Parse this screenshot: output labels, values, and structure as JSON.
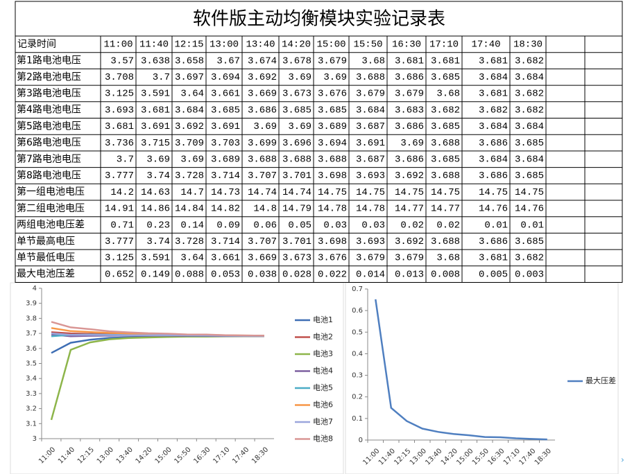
{
  "table": {
    "title": "软件版主动均衡模块实验记录表",
    "header": [
      "记录时间",
      "11:00",
      "11:40",
      "12:15",
      "13:00",
      "13:40",
      "14:20",
      "15:00",
      "15:50",
      "16:30",
      "17:10",
      "17:40",
      "18:30"
    ],
    "rows": [
      [
        "第1路电池电压",
        3.57,
        3.638,
        3.658,
        3.67,
        3.674,
        3.678,
        3.679,
        3.68,
        3.681,
        3.681,
        3.681,
        3.682
      ],
      [
        "第2路电池电压",
        3.708,
        3.7,
        3.697,
        3.694,
        3.692,
        3.69,
        3.69,
        3.688,
        3.686,
        3.685,
        3.684,
        3.684
      ],
      [
        "第3路电池电压",
        3.125,
        3.591,
        3.64,
        3.661,
        3.669,
        3.673,
        3.676,
        3.679,
        3.679,
        3.68,
        3.681,
        3.682
      ],
      [
        "第4路电池电压",
        3.693,
        3.681,
        3.684,
        3.685,
        3.686,
        3.685,
        3.685,
        3.684,
        3.683,
        3.682,
        3.682,
        3.682
      ],
      [
        "第5路电池电压",
        3.681,
        3.691,
        3.692,
        3.691,
        3.69,
        3.69,
        3.689,
        3.687,
        3.686,
        3.685,
        3.684,
        3.684
      ],
      [
        "第6路电池电压",
        3.736,
        3.715,
        3.709,
        3.703,
        3.699,
        3.696,
        3.694,
        3.691,
        3.69,
        3.688,
        3.686,
        3.685
      ],
      [
        "第7路电池电压",
        3.7,
        3.69,
        3.69,
        3.689,
        3.688,
        3.688,
        3.688,
        3.687,
        3.686,
        3.685,
        3.684,
        3.684
      ],
      [
        "第8路电池电压",
        3.777,
        3.74,
        3.728,
        3.714,
        3.707,
        3.701,
        3.698,
        3.693,
        3.692,
        3.688,
        3.686,
        3.685
      ],
      [
        "第一组电池电压",
        14.2,
        14.63,
        14.7,
        14.73,
        14.74,
        14.74,
        14.75,
        14.75,
        14.75,
        14.75,
        14.75,
        14.75
      ],
      [
        "第二组电池电压",
        14.91,
        14.86,
        14.84,
        14.82,
        14.8,
        14.79,
        14.78,
        14.78,
        14.77,
        14.77,
        14.76,
        14.76
      ],
      [
        "两组电池电压差",
        0.71,
        0.23,
        0.14,
        0.09,
        0.06,
        0.05,
        0.03,
        0.03,
        0.02,
        0.02,
        0.01,
        0.01
      ],
      [
        "单节最高电压",
        3.777,
        3.74,
        3.728,
        3.714,
        3.707,
        3.701,
        3.698,
        3.693,
        3.692,
        3.688,
        3.686,
        3.685
      ],
      [
        "单节最低电压",
        3.125,
        3.591,
        3.64,
        3.661,
        3.669,
        3.673,
        3.676,
        3.679,
        3.679,
        3.68,
        3.681,
        3.682
      ],
      [
        "最大电池压差",
        0.652,
        0.149,
        0.088,
        0.053,
        0.038,
        0.028,
        0.022,
        0.014,
        0.013,
        0.008,
        0.005,
        0.003
      ]
    ]
  },
  "chart_data": [
    {
      "type": "line",
      "categories": [
        "11:00",
        "11:40",
        "12:15",
        "13:00",
        "13:40",
        "14:20",
        "15:00",
        "15:50",
        "16:30",
        "17:10",
        "17:40",
        "18:30"
      ],
      "ylim": [
        3,
        4
      ],
      "yticks": [
        3,
        3.1,
        3.2,
        3.3,
        3.4,
        3.5,
        3.6,
        3.7,
        3.8,
        3.9,
        4
      ],
      "series": [
        {
          "name": "电池1",
          "color": "#3e6eb4",
          "values": [
            3.57,
            3.638,
            3.658,
            3.67,
            3.674,
            3.678,
            3.679,
            3.68,
            3.681,
            3.681,
            3.681,
            3.682
          ]
        },
        {
          "name": "电池2",
          "color": "#c0504d",
          "values": [
            3.708,
            3.7,
            3.697,
            3.694,
            3.692,
            3.69,
            3.69,
            3.688,
            3.686,
            3.685,
            3.684,
            3.684
          ]
        },
        {
          "name": "电池3",
          "color": "#8db54a",
          "values": [
            3.125,
            3.591,
            3.64,
            3.661,
            3.669,
            3.673,
            3.676,
            3.679,
            3.679,
            3.68,
            3.681,
            3.682
          ]
        },
        {
          "name": "电池4",
          "color": "#7d60a0",
          "values": [
            3.693,
            3.681,
            3.684,
            3.685,
            3.686,
            3.685,
            3.685,
            3.684,
            3.683,
            3.682,
            3.682,
            3.682
          ]
        },
        {
          "name": "电池5",
          "color": "#4bacc6",
          "values": [
            3.681,
            3.691,
            3.692,
            3.691,
            3.69,
            3.69,
            3.689,
            3.687,
            3.686,
            3.685,
            3.684,
            3.684
          ]
        },
        {
          "name": "电池6",
          "color": "#f79646",
          "values": [
            3.736,
            3.715,
            3.709,
            3.703,
            3.699,
            3.696,
            3.694,
            3.691,
            3.69,
            3.688,
            3.686,
            3.685
          ]
        },
        {
          "name": "电池7",
          "color": "#9aa6dc",
          "values": [
            3.7,
            3.69,
            3.69,
            3.689,
            3.688,
            3.688,
            3.688,
            3.687,
            3.686,
            3.685,
            3.684,
            3.684
          ]
        },
        {
          "name": "电池8",
          "color": "#d99694",
          "values": [
            3.777,
            3.74,
            3.728,
            3.714,
            3.707,
            3.701,
            3.698,
            3.693,
            3.692,
            3.688,
            3.686,
            3.685
          ]
        }
      ]
    },
    {
      "type": "line",
      "categories": [
        "11:00",
        "11:40",
        "12:15",
        "13:00",
        "13:40",
        "14:20",
        "15:00",
        "15:50",
        "16:30",
        "17:10",
        "17:40",
        "18:30"
      ],
      "ylim": [
        0,
        0.7
      ],
      "yticks": [
        0,
        0.1,
        0.2,
        0.3,
        0.4,
        0.5,
        0.6,
        0.7
      ],
      "series": [
        {
          "name": "最大压差",
          "color": "#4f7fc0",
          "values": [
            0.652,
            0.149,
            0.088,
            0.053,
            0.038,
            0.028,
            0.022,
            0.014,
            0.013,
            0.008,
            0.005,
            0.003
          ]
        }
      ]
    }
  ]
}
